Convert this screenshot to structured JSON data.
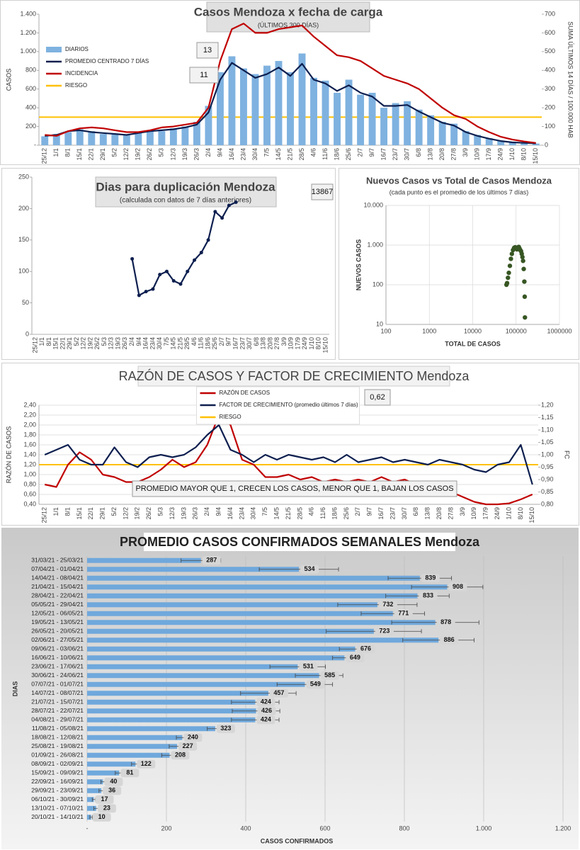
{
  "chart_data": [
    {
      "type": "combo",
      "title": "Casos Mendoza x fecha de carga",
      "subtitle": "(ÚLTIMOS 300 DÍAS)",
      "ylabel": "CASOS",
      "y2label": "SUMA ÚLTIMOS 14 DÍAS / 100.000 HAB",
      "categories": [
        "25/12",
        "1/1",
        "8/1",
        "15/1",
        "22/1",
        "29/1",
        "5/2",
        "12/2",
        "19/2",
        "26/2",
        "5/3",
        "12/3",
        "19/3",
        "26/3",
        "2/4",
        "9/4",
        "16/4",
        "23/4",
        "30/4",
        "7/5",
        "14/5",
        "21/5",
        "28/5",
        "4/6",
        "11/6",
        "18/6",
        "25/6",
        "2/7",
        "9/7",
        "16/7",
        "23/7",
        "30/7",
        "6/8",
        "13/8",
        "20/8",
        "27/8",
        "3/9",
        "10/9",
        "17/9",
        "24/9",
        "1/10",
        "8/10",
        "15/10"
      ],
      "series": [
        {
          "name": "DIARIOS",
          "type": "bar",
          "color": "#7fb2e0",
          "values": [
            95,
            120,
            140,
            170,
            150,
            120,
            115,
            105,
            140,
            160,
            150,
            180,
            200,
            250,
            420,
            780,
            950,
            820,
            760,
            850,
            900,
            780,
            980,
            720,
            690,
            560,
            700,
            540,
            560,
            400,
            450,
            470,
            380,
            320,
            250,
            230,
            150,
            110,
            75,
            50,
            35,
            30,
            18
          ]
        },
        {
          "name": "PROMEDIO CENTRADO 7 DÍAS",
          "type": "line",
          "color": "#0d1f4f",
          "values": [
            100,
            110,
            150,
            160,
            140,
            130,
            120,
            110,
            130,
            150,
            160,
            170,
            190,
            220,
            350,
            700,
            880,
            800,
            720,
            760,
            830,
            740,
            870,
            700,
            660,
            580,
            640,
            560,
            520,
            420,
            420,
            430,
            360,
            300,
            240,
            210,
            140,
            100,
            70,
            45,
            30,
            25,
            20
          ]
        },
        {
          "name": "INCIDENCIA",
          "type": "line",
          "axis": "y2",
          "color": "#c00000",
          "values": [
            55,
            50,
            75,
            90,
            95,
            90,
            80,
            70,
            70,
            80,
            95,
            100,
            110,
            120,
            200,
            450,
            620,
            650,
            600,
            600,
            620,
            630,
            640,
            580,
            530,
            480,
            470,
            450,
            410,
            370,
            350,
            330,
            300,
            250,
            200,
            160,
            140,
            100,
            70,
            45,
            30,
            20,
            12
          ]
        }
      ],
      "reference_lines": [
        {
          "name": "RIESGO",
          "color": "#ffc000",
          "value": 150,
          "axis": "y2"
        }
      ],
      "annotations": [
        "13",
        "11"
      ],
      "ylim": [
        0,
        1400
      ],
      "yticks": [
        {
          "value": 0,
          "label": "-"
        },
        200,
        400,
        600,
        800,
        {
          "value": 1000,
          "label": "1.000"
        },
        {
          "value": 1200,
          "label": "1.200"
        },
        {
          "value": 1400,
          "label": "1.400"
        }
      ],
      "y2lim": [
        0,
        700
      ],
      "y2ticks": [
        0,
        100,
        200,
        300,
        400,
        500,
        600,
        700
      ],
      "grid": false,
      "legend": "upper left"
    },
    {
      "type": "line",
      "title": "Dias para duplicación Mendoza",
      "subtitle": "(calculada con datos de 7 días anteriores)",
      "categories": [
        "25/12",
        "1/1",
        "8/1",
        "15/1",
        "22/1",
        "29/1",
        "5/2",
        "12/2",
        "19/2",
        "26/2",
        "5/3",
        "12/3",
        "19/3",
        "26/3",
        "2/4",
        "9/4",
        "16/4",
        "23/4",
        "30/4",
        "7/5",
        "14/5",
        "21/5",
        "28/5",
        "4/6",
        "11/6",
        "18/6",
        "25/6",
        "2/7",
        "9/7",
        "16/7",
        "23/7",
        "30/7",
        "6/8",
        "13/8",
        "20/8",
        "27/8",
        "3/9",
        "10/9",
        "17/9",
        "24/9",
        "1/10",
        "8/10",
        "15/10"
      ],
      "series": [
        {
          "name": null,
          "type": "line",
          "marker": true,
          "color": "#0d1f4f",
          "values": [
            null,
            null,
            null,
            null,
            null,
            null,
            null,
            null,
            null,
            null,
            null,
            null,
            null,
            null,
            120,
            62,
            68,
            72,
            95,
            100,
            85,
            80,
            100,
            118,
            130,
            150,
            195,
            185,
            205,
            210,
            null,
            null,
            null,
            null,
            null,
            null,
            null,
            null,
            null,
            null,
            null,
            null,
            null
          ]
        }
      ],
      "annotations": [
        "13867"
      ],
      "ylim": [
        0,
        250
      ],
      "yticks": [
        0,
        50,
        100,
        150,
        200,
        250
      ],
      "grid": false
    },
    {
      "type": "scatter",
      "title": "Nuevos Casos vs Total de Casos Mendoza",
      "subtitle": "(cada punto es el promedio de los últimos 7 días)",
      "xlabel": "TOTAL DE CASOS",
      "ylabel": "NUEVOS CASOS",
      "color": "#375623",
      "log": true,
      "x": [
        60000,
        62000,
        65000,
        68000,
        72000,
        76000,
        80000,
        85000,
        90000,
        95000,
        100000,
        105000,
        110000,
        115000,
        120000,
        125000,
        130000,
        135000,
        140000,
        145000,
        150000,
        155000,
        158000,
        160000
      ],
      "values": [
        100,
        110,
        150,
        200,
        300,
        450,
        600,
        750,
        850,
        880,
        840,
        780,
        870,
        900,
        820,
        750,
        700,
        600,
        500,
        400,
        250,
        120,
        50,
        15
      ],
      "xlim": [
        100,
        1000000
      ],
      "xticks": [
        100,
        1000,
        10000,
        100000,
        1000000
      ],
      "ylim": [
        10,
        10000
      ],
      "yticks": [
        10,
        100,
        {
          "value": 1000,
          "label": "1.000"
        },
        {
          "value": 10000,
          "label": "10.000"
        }
      ],
      "grid": true
    },
    {
      "type": "line",
      "title": "RAZÓN DE CASOS Y FACTOR DE CRECIMIENTO Mendoza",
      "ylabel": "RAZÓN DE CASOS",
      "y2label": "FC",
      "categories": [
        "25/12",
        "1/1",
        "8/1",
        "15/1",
        "22/1",
        "29/1",
        "5/2",
        "12/2",
        "19/2",
        "26/2",
        "5/3",
        "12/3",
        "19/3",
        "26/3",
        "2/4",
        "9/4",
        "16/4",
        "23/4",
        "30/4",
        "7/5",
        "14/5",
        "21/5",
        "28/5",
        "4/6",
        "11/6",
        "18/6",
        "25/6",
        "2/7",
        "9/7",
        "16/7",
        "23/7",
        "30/7",
        "6/8",
        "13/8",
        "20/8",
        "27/8",
        "3/9",
        "10/9",
        "17/9",
        "24/9",
        "1/10",
        "8/10",
        "15/10"
      ],
      "series": [
        {
          "name": "RAZÓN DE CASOS",
          "type": "line",
          "color": "#c00000",
          "values": [
            0.8,
            0.75,
            1.2,
            1.45,
            1.3,
            1.0,
            0.95,
            0.85,
            0.85,
            0.95,
            1.1,
            1.3,
            1.15,
            1.25,
            1.6,
            2.2,
            2.0,
            1.3,
            1.2,
            0.95,
            0.95,
            1.0,
            0.9,
            0.95,
            0.85,
            0.9,
            0.85,
            0.9,
            0.85,
            0.95,
            0.85,
            0.9,
            0.8,
            0.75,
            0.7,
            0.65,
            0.55,
            0.45,
            0.4,
            0.4,
            0.42,
            0.5,
            0.6
          ]
        },
        {
          "name": "FACTOR DE CRECIMIENTO (promedio últimos 7 días)",
          "type": "line",
          "axis": "y2",
          "color": "#0d1f4f",
          "values": [
            1.0,
            1.02,
            1.04,
            0.98,
            0.96,
            0.96,
            1.03,
            0.97,
            0.95,
            0.99,
            1.0,
            0.99,
            1.0,
            1.03,
            1.08,
            1.12,
            1.02,
            1.0,
            0.97,
            1.0,
            0.98,
            1.0,
            0.99,
            0.98,
            0.99,
            0.97,
            1.0,
            0.97,
            0.98,
            0.99,
            0.97,
            0.98,
            0.97,
            0.96,
            0.98,
            0.97,
            0.96,
            0.94,
            0.93,
            0.96,
            0.97,
            1.04,
            0.88
          ]
        }
      ],
      "reference_lines": [
        {
          "name": "RIESGO",
          "color": "#ffc000",
          "value": 1.2
        }
      ],
      "annotations": [
        "0,62",
        "PROMEDIO MAYOR QUE 1, CRECEN LOS CASOS, MENOR QUE 1, BAJAN LOS CASOS"
      ],
      "ylim": [
        0.4,
        2.4
      ],
      "yticks": [
        {
          "value": 0.4,
          "label": "0,40"
        },
        {
          "value": 0.6,
          "label": "0,60"
        },
        {
          "value": 0.8,
          "label": "0,80"
        },
        {
          "value": 1.0,
          "label": "1,00"
        },
        {
          "value": 1.2,
          "label": "1,20"
        },
        {
          "value": 1.4,
          "label": "1,40"
        },
        {
          "value": 1.6,
          "label": "1,60"
        },
        {
          "value": 1.8,
          "label": "1,80"
        },
        {
          "value": 2.0,
          "label": "2,00"
        },
        {
          "value": 2.2,
          "label": "2,20"
        },
        {
          "value": 2.4,
          "label": "2,40"
        }
      ],
      "y2lim": [
        0.8,
        1.2
      ],
      "y2ticks": [
        {
          "value": 0.8,
          "label": "0,80"
        },
        {
          "value": 0.85,
          "label": "0,85"
        },
        {
          "value": 0.9,
          "label": "0,90"
        },
        {
          "value": 0.95,
          "label": "0,95"
        },
        {
          "value": 1.0,
          "label": "1,00"
        },
        {
          "value": 1.05,
          "label": "1,05"
        },
        {
          "value": 1.1,
          "label": "1,10"
        },
        {
          "value": 1.15,
          "label": "1,15"
        },
        {
          "value": 1.2,
          "label": "1,20"
        }
      ],
      "grid": true,
      "legend": "upper center"
    },
    {
      "type": "bar",
      "orientation": "horizontal",
      "title": "PROMEDIO CASOS CONFIRMADOS SEMANALES Mendoza",
      "xlabel": "CASOS CONFIRMADOS",
      "ylabel": "DIAS",
      "color": "#6fa8dc",
      "categories": [
        "31/03/21 - 25/03/21",
        "07/04/21 - 01/04/21",
        "14/04/21 - 08/04/21",
        "21/04/21 - 15/04/21",
        "28/04/21 - 22/04/21",
        "05/05/21 - 29/04/21",
        "12/05/21 - 06/05/21",
        "19/05/21 - 13/05/21",
        "26/05/21 - 20/05/21",
        "02/06/21 - 27/05/21",
        "09/06/21 - 03/06/21",
        "16/06/21 - 10/06/21",
        "23/06/21 - 17/06/21",
        "30/06/21 - 24/06/21",
        "07/07/21 - 01/07/21",
        "14/07/21 - 08/07/21",
        "21/07/21 - 15/07/21",
        "28/07/21 - 22/07/21",
        "04/08/21 - 29/07/21",
        "11/08/21 - 05/08/21",
        "18/08/21 - 12/08/21",
        "25/08/21 - 19/08/21",
        "01/09/21 - 26/08/21",
        "08/09/21 - 02/09/21",
        "15/09/21 - 09/09/21",
        "22/09/21 - 16/09/21",
        "29/09/21 - 23/09/21",
        "06/10/21 - 30/09/21",
        "13/10/21 - 07/10/21",
        "20/10/21 - 14/10/21"
      ],
      "values": [
        287,
        534,
        839,
        908,
        833,
        732,
        771,
        878,
        723,
        886,
        676,
        649,
        531,
        585,
        549,
        457,
        424,
        426,
        424,
        323,
        240,
        227,
        208,
        122,
        81,
        40,
        36,
        17,
        23,
        10
      ],
      "errors": [
        50,
        100,
        80,
        90,
        80,
        100,
        80,
        110,
        120,
        90,
        40,
        30,
        70,
        60,
        70,
        70,
        60,
        60,
        60,
        20,
        15,
        20,
        20,
        10,
        10,
        5,
        6,
        4,
        6,
        3
      ],
      "xlim": [
        0,
        1200
      ],
      "xticks": [
        {
          "value": 0,
          "label": "-"
        },
        200,
        400,
        600,
        800,
        {
          "value": 1000,
          "label": "1.000"
        },
        {
          "value": 1200,
          "label": "1.200"
        }
      ],
      "grid": true
    }
  ]
}
